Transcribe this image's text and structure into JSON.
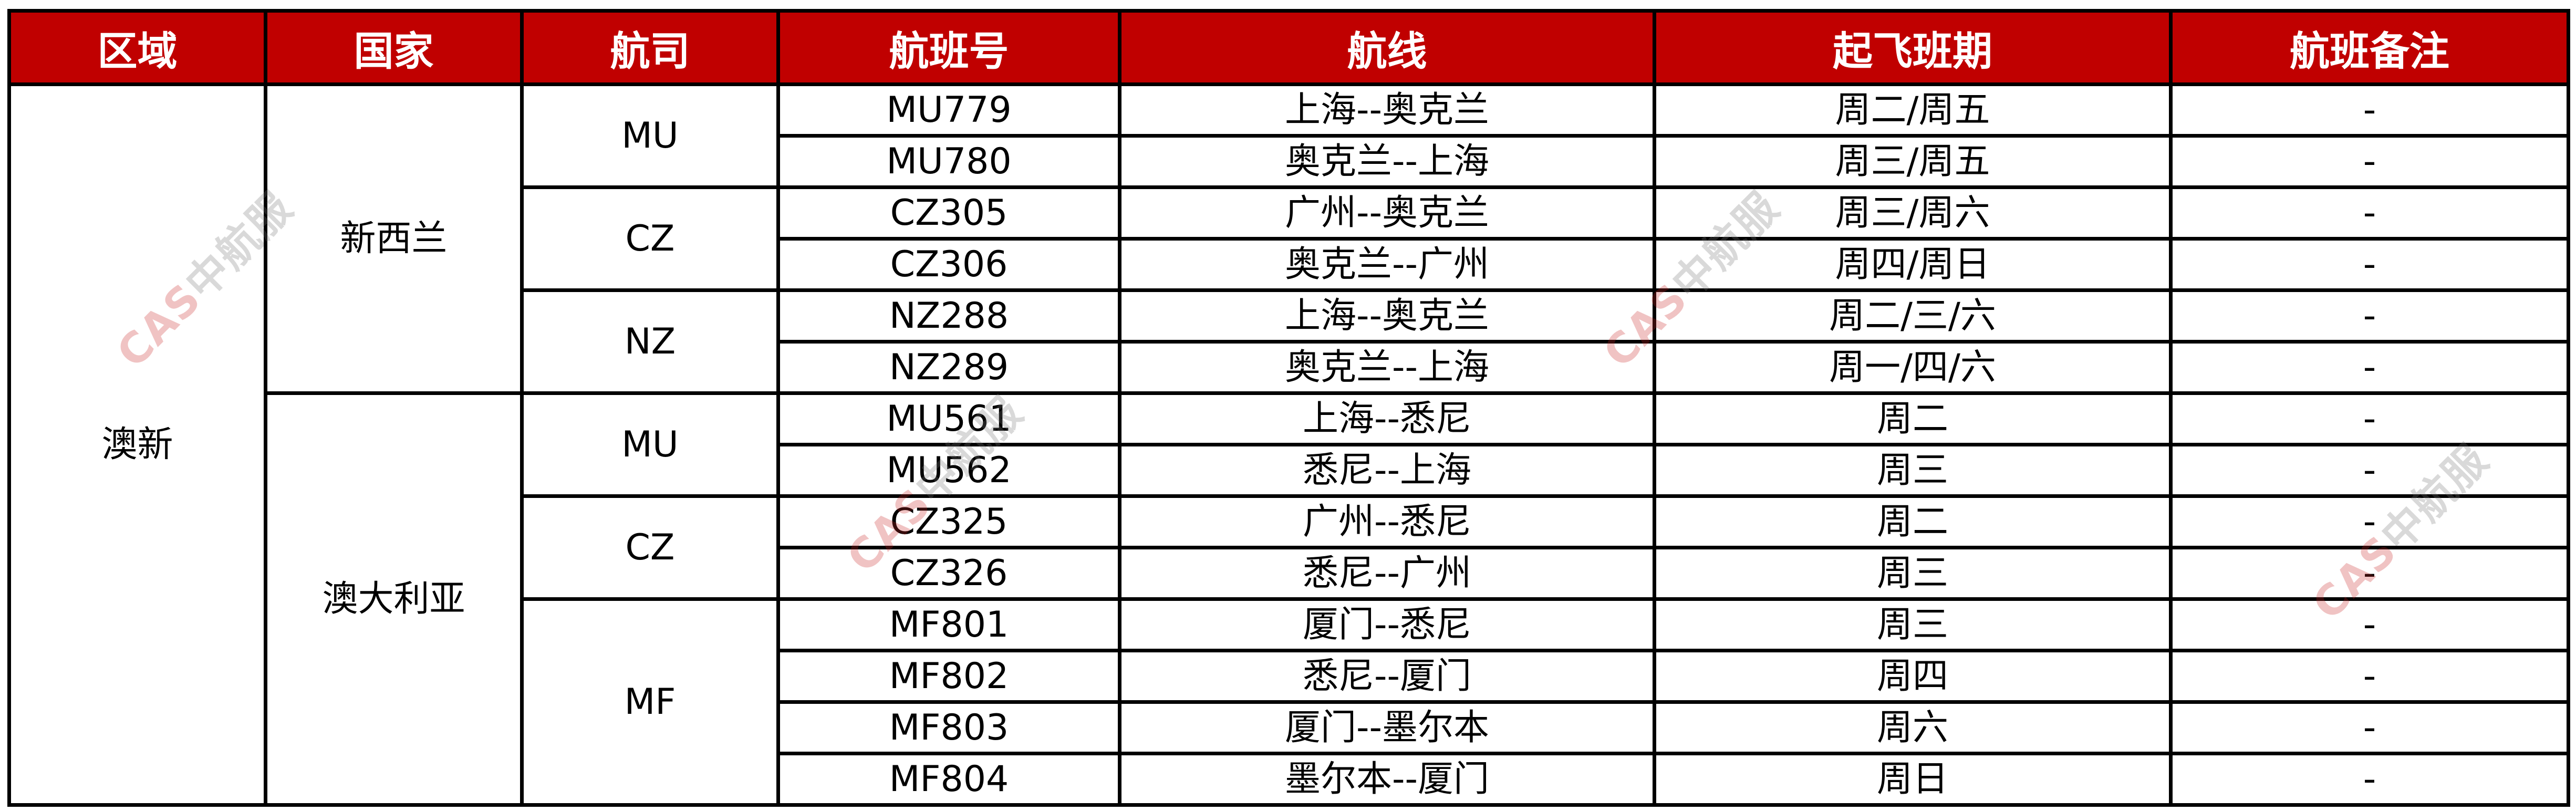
{
  "header": [
    "区域",
    "国家",
    "航司",
    "航班号",
    "航线",
    "起飞班期",
    "航班备注"
  ],
  "colors": {
    "header_bg": "#c00000",
    "header_text": "#ffffff",
    "border": "#000000"
  },
  "watermark": {
    "logo": "CAS",
    "text": "中航服"
  },
  "regions": [
    {
      "name": "澳新",
      "countries": [
        {
          "name": "新西兰",
          "airlines": [
            {
              "code": "MU",
              "flights": [
                {
                  "no": "MU779",
                  "route": "上海--奥克兰",
                  "days": "周二/周五",
                  "remark": "-"
                },
                {
                  "no": "MU780",
                  "route": "奥克兰--上海",
                  "days": "周三/周五",
                  "remark": "-"
                }
              ]
            },
            {
              "code": "CZ",
              "flights": [
                {
                  "no": "CZ305",
                  "route": "广州--奥克兰",
                  "days": "周三/周六",
                  "remark": "-"
                },
                {
                  "no": "CZ306",
                  "route": "奥克兰--广州",
                  "days": "周四/周日",
                  "remark": "-"
                }
              ]
            },
            {
              "code": "NZ",
              "flights": [
                {
                  "no": "NZ288",
                  "route": "上海--奥克兰",
                  "days": "周二/三/六",
                  "remark": "-"
                },
                {
                  "no": "NZ289",
                  "route": "奥克兰--上海",
                  "days": "周一/四/六",
                  "remark": "-"
                }
              ]
            }
          ]
        },
        {
          "name": "澳大利亚",
          "airlines": [
            {
              "code": "MU",
              "flights": [
                {
                  "no": "MU561",
                  "route": "上海--悉尼",
                  "days": "周二",
                  "remark": "-"
                },
                {
                  "no": "MU562",
                  "route": "悉尼--上海",
                  "days": "周三",
                  "remark": "-"
                }
              ]
            },
            {
              "code": "CZ",
              "flights": [
                {
                  "no": "CZ325",
                  "route": "广州--悉尼",
                  "days": "周二",
                  "remark": "-"
                },
                {
                  "no": "CZ326",
                  "route": "悉尼--广州",
                  "days": "周三",
                  "remark": "-"
                }
              ]
            },
            {
              "code": "MF",
              "flights": [
                {
                  "no": "MF801",
                  "route": "厦门--悉尼",
                  "days": "周三",
                  "remark": "-"
                },
                {
                  "no": "MF802",
                  "route": "悉尼--厦门",
                  "days": "周四",
                  "remark": "-"
                },
                {
                  "no": "MF803",
                  "route": "厦门--墨尔本",
                  "days": "周六",
                  "remark": "-"
                },
                {
                  "no": "MF804",
                  "route": "墨尔本--厦门",
                  "days": "周日",
                  "remark": "-"
                }
              ]
            }
          ]
        }
      ]
    }
  ]
}
